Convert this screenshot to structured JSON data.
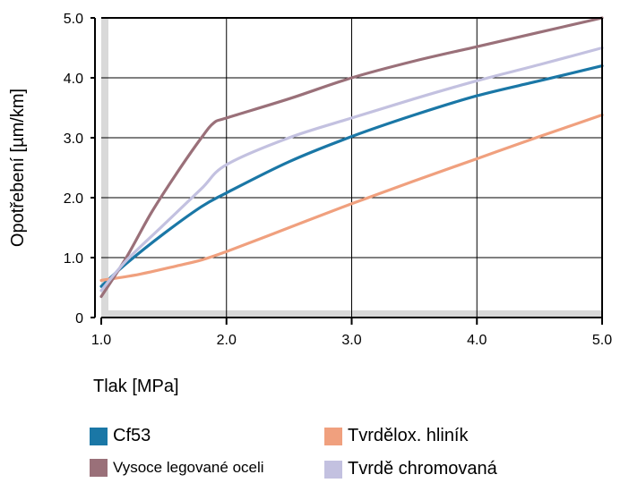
{
  "chart_data": {
    "type": "line",
    "title": "",
    "xlabel": "Tlak [MPa]",
    "ylabel": "Opotřebení [µm/km]",
    "xlim": [
      1.0,
      5.0
    ],
    "ylim": [
      0,
      5.0
    ],
    "x_ticks": [
      "1.0",
      "2.0",
      "3.0",
      "4.0",
      "5.0"
    ],
    "y_ticks": [
      "0",
      "1.0",
      "2.0",
      "3.0",
      "4.0",
      "5.0"
    ],
    "grid": true,
    "legend_position": "bottom",
    "series": [
      {
        "name": "Cf53",
        "color": "#1a77a6",
        "points": [
          [
            1.0,
            0.52
          ],
          [
            1.2,
            0.9
          ],
          [
            1.5,
            1.4
          ],
          [
            1.8,
            1.85
          ],
          [
            2.0,
            2.08
          ],
          [
            2.5,
            2.6
          ],
          [
            3.0,
            3.02
          ],
          [
            3.5,
            3.38
          ],
          [
            4.0,
            3.7
          ],
          [
            4.5,
            3.95
          ],
          [
            5.0,
            4.2
          ]
        ]
      },
      {
        "name": "Tvrdělox. hliník",
        "color": "#f0a07e",
        "points": [
          [
            1.0,
            0.62
          ],
          [
            1.3,
            0.72
          ],
          [
            1.6,
            0.86
          ],
          [
            1.8,
            0.96
          ],
          [
            2.0,
            1.1
          ],
          [
            2.5,
            1.5
          ],
          [
            3.0,
            1.9
          ],
          [
            3.5,
            2.28
          ],
          [
            4.0,
            2.65
          ],
          [
            4.5,
            3.02
          ],
          [
            5.0,
            3.38
          ]
        ]
      },
      {
        "name": "Vysoce legované oceli",
        "color": "#9a7079",
        "points": [
          [
            1.0,
            0.35
          ],
          [
            1.2,
            1.0
          ],
          [
            1.4,
            1.75
          ],
          [
            1.6,
            2.4
          ],
          [
            1.8,
            3.0
          ],
          [
            1.9,
            3.25
          ],
          [
            2.0,
            3.33
          ],
          [
            2.5,
            3.65
          ],
          [
            3.0,
            4.0
          ],
          [
            3.5,
            4.28
          ],
          [
            4.0,
            4.52
          ],
          [
            4.5,
            4.76
          ],
          [
            5.0,
            5.0
          ]
        ]
      },
      {
        "name": "Tvrdě chromovaná",
        "color": "#c3c1e0",
        "points": [
          [
            1.0,
            0.45
          ],
          [
            1.2,
            0.95
          ],
          [
            1.5,
            1.55
          ],
          [
            1.8,
            2.15
          ],
          [
            2.0,
            2.55
          ],
          [
            2.5,
            3.0
          ],
          [
            3.0,
            3.33
          ],
          [
            3.5,
            3.65
          ],
          [
            4.0,
            3.95
          ],
          [
            4.5,
            4.22
          ],
          [
            5.0,
            4.5
          ]
        ]
      }
    ]
  }
}
